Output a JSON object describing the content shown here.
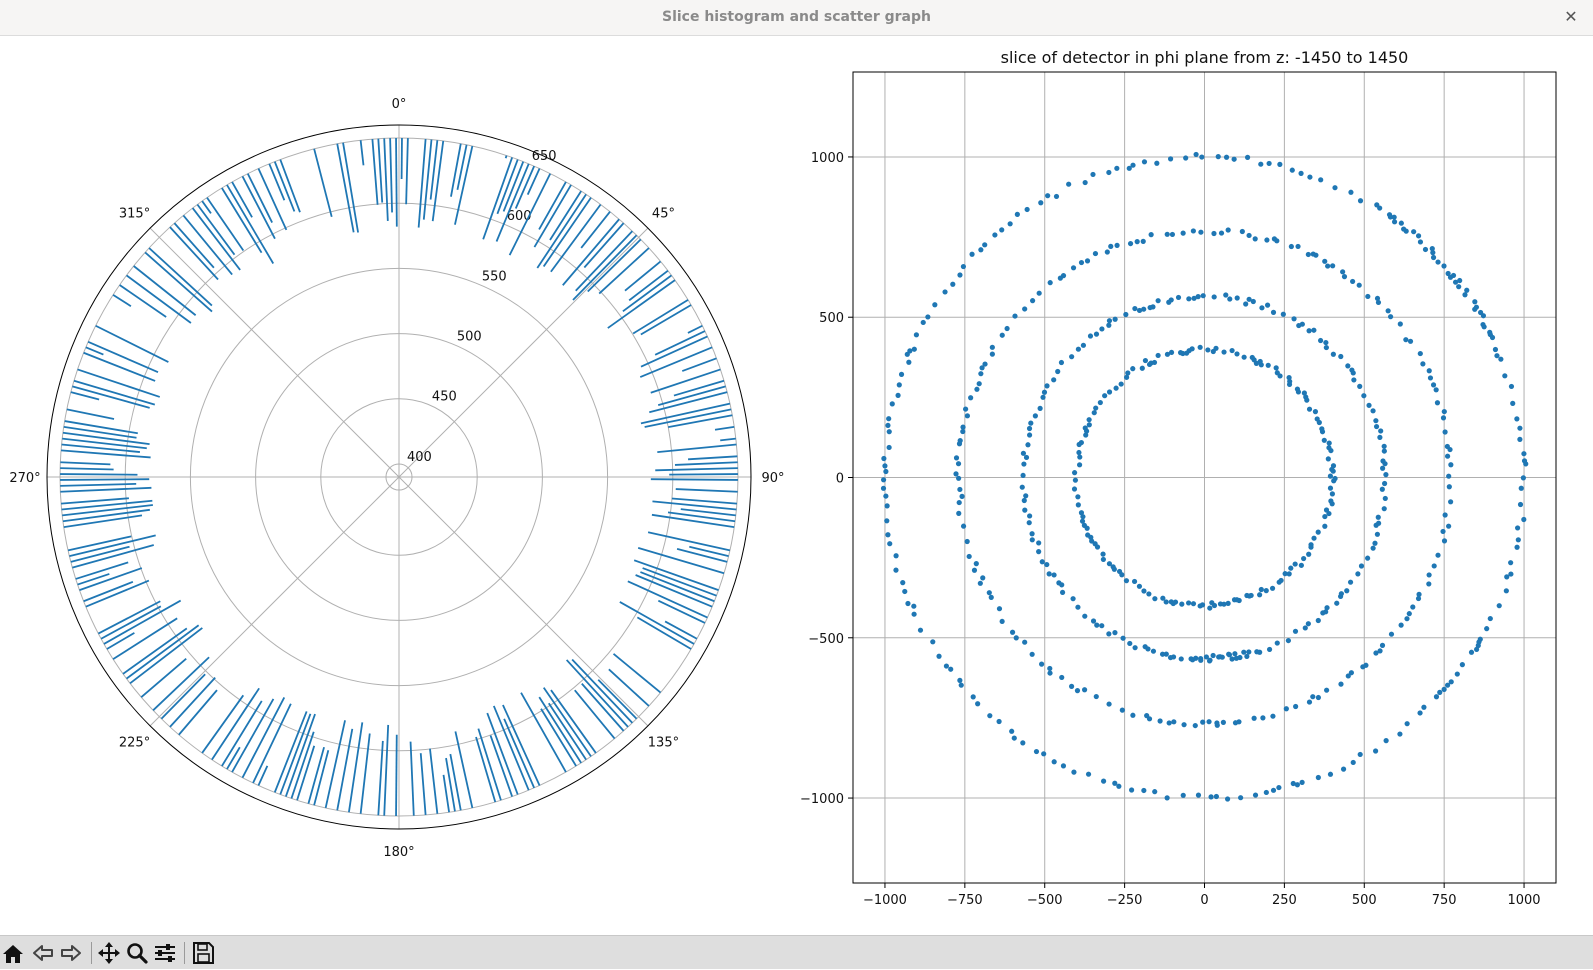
{
  "window": {
    "title": "Slice histogram and scatter graph",
    "close_glyph": "✕"
  },
  "toolbar": {
    "buttons": [
      "home-icon",
      "back-icon",
      "forward-icon",
      "pan-icon",
      "zoom-icon",
      "configure-subplots-icon",
      "save-icon"
    ]
  },
  "colors": {
    "series": "#1f77b4",
    "grid": "#b0b0b0",
    "axes": "#000000"
  },
  "chart_data": [
    {
      "type": "bar",
      "projection": "polar",
      "title": "",
      "theta_direction": "clockwise",
      "theta_zero": "top",
      "theta_tick_labels": [
        "0°",
        "45°",
        "90°",
        "135°",
        "180°",
        "225°",
        "270°",
        "315°"
      ],
      "r_tick_values": [
        400,
        450,
        500,
        550,
        600,
        650
      ],
      "r_tick_labels": [
        "400",
        "450",
        "500",
        "550",
        "600",
        "650"
      ],
      "rlim": [
        390,
        660
      ],
      "bar_base": 650,
      "bin_count": 360,
      "grid": true,
      "bars_note_values_min": 580,
      "bars_note_values_max": 650
    },
    {
      "type": "scatter",
      "title": "slice of detector in phi plane from z: -1450 to 1450",
      "xlabel": "",
      "ylabel": "",
      "xlim": [
        -1100,
        1100
      ],
      "ylim": [
        -1265,
        1265
      ],
      "x_ticks": [
        -1000,
        -750,
        -500,
        -250,
        0,
        250,
        500,
        750,
        1000
      ],
      "x_tick_labels": [
        "−1000",
        "−750",
        "−500",
        "−250",
        "0",
        "250",
        "500",
        "750",
        "1000"
      ],
      "y_ticks": [
        -1000,
        -500,
        0,
        500,
        1000
      ],
      "y_tick_labels": [
        "−1000",
        "−500",
        "0",
        "500",
        "1000"
      ],
      "grid": true,
      "rings": [
        {
          "radius": 400,
          "center_x": 0,
          "center_y": 0,
          "points": 150
        },
        {
          "radius": 565,
          "center_x": 0,
          "center_y": 0,
          "points": 165
        },
        {
          "radius": 770,
          "center_x": 0,
          "center_y": 0,
          "points": 165
        },
        {
          "radius": 1000,
          "center_x": 0,
          "center_y": 0,
          "points": 200
        }
      ]
    }
  ]
}
